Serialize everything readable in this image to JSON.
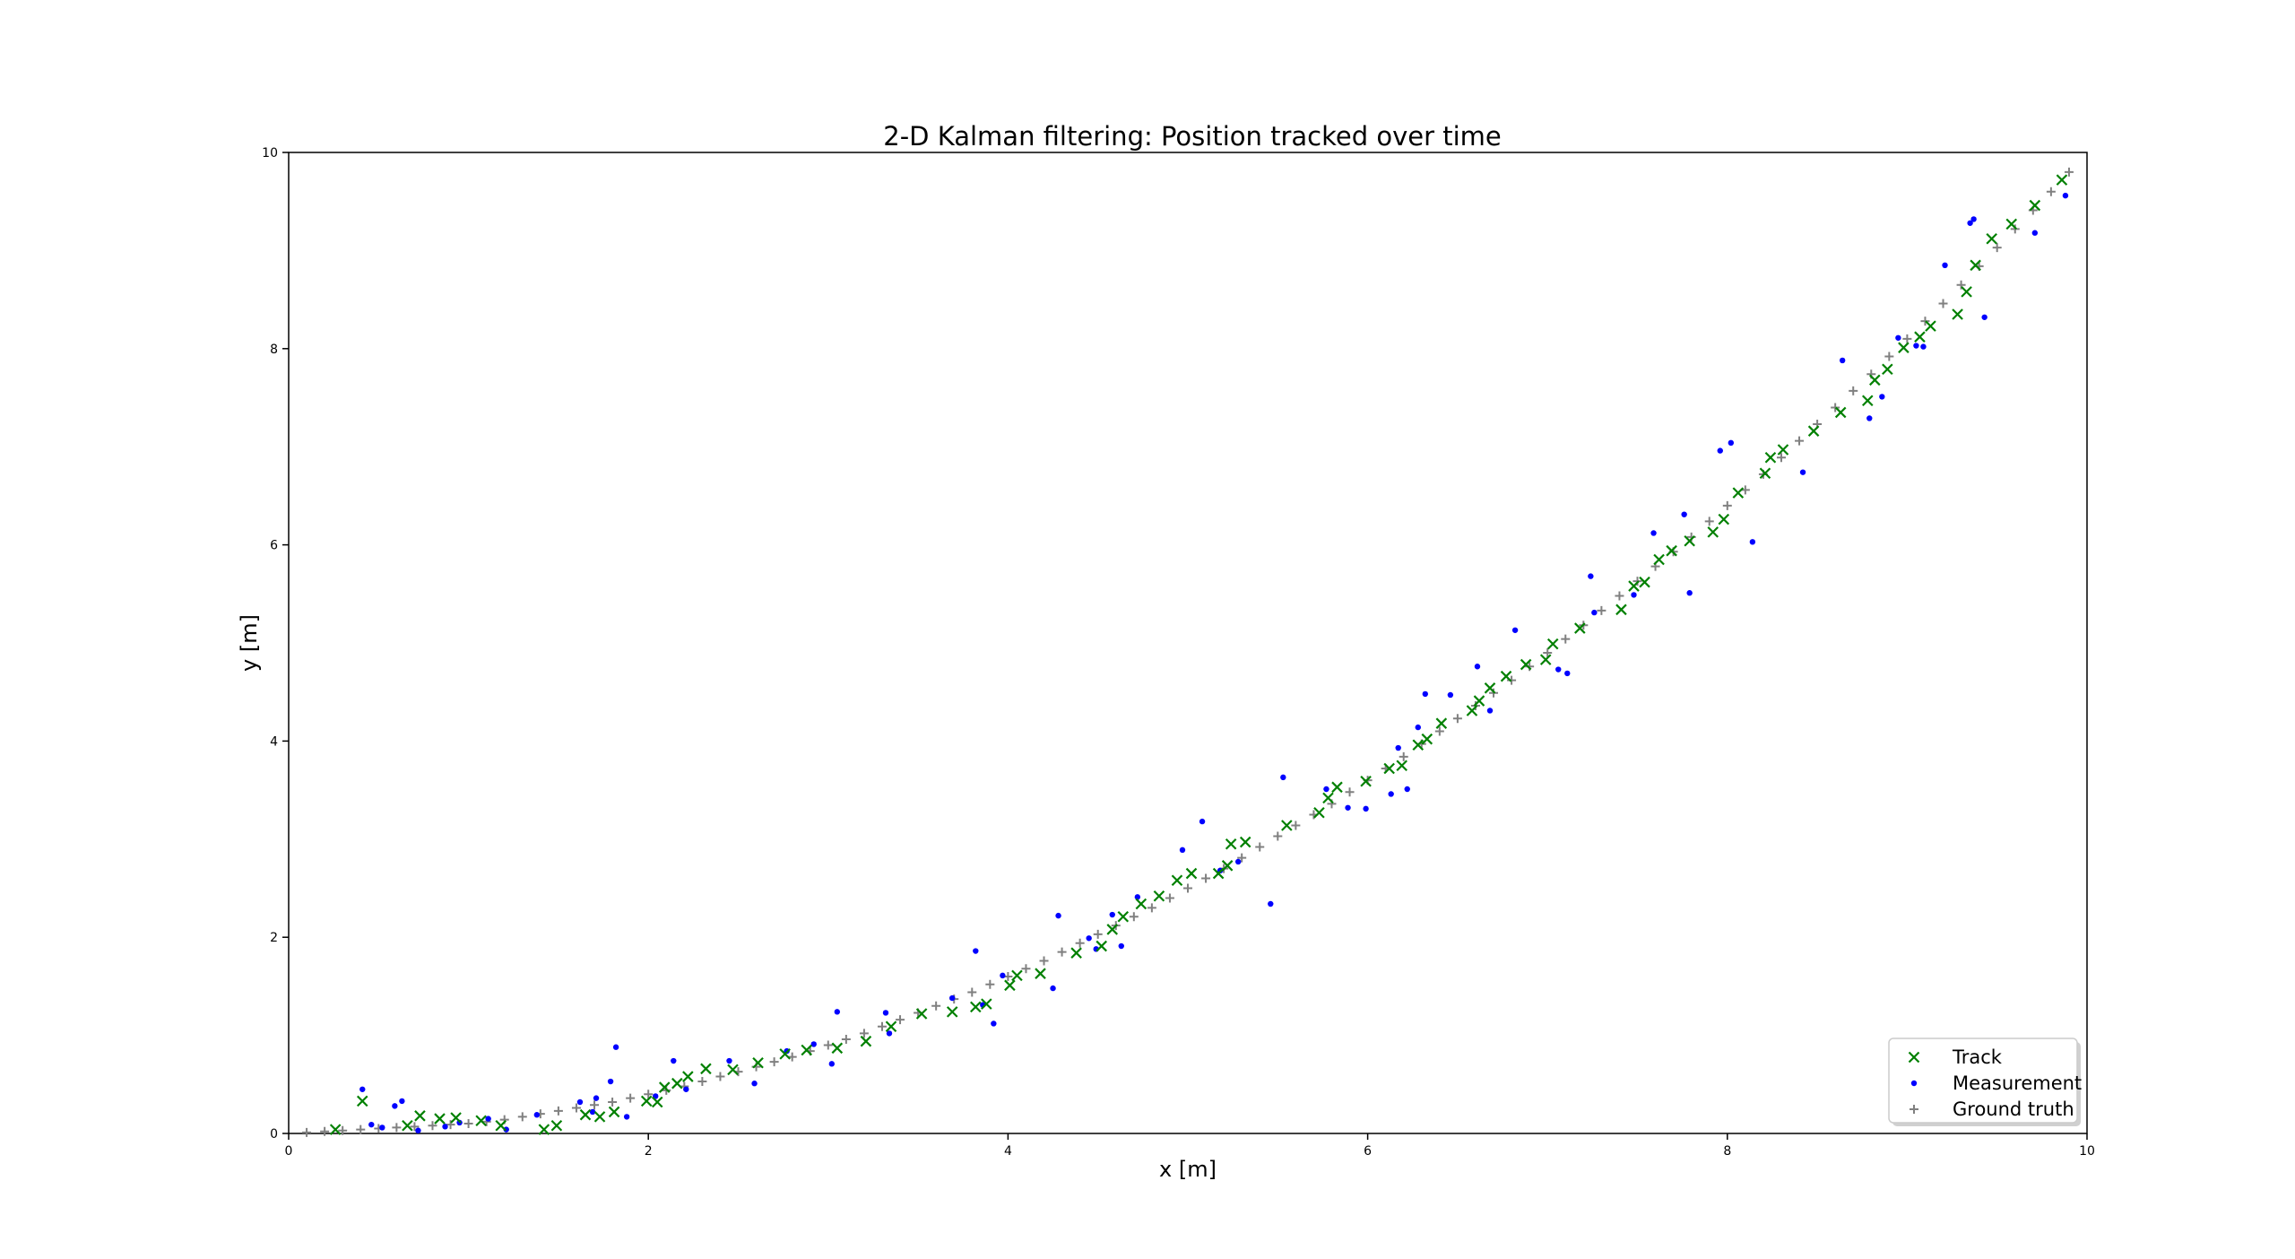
{
  "chart_data": {
    "type": "scatter",
    "title": "2-D Kalman filtering: Position tracked over time",
    "xlabel": "x [m]",
    "ylabel": "y [m]",
    "xlim": [
      0,
      10
    ],
    "ylim": [
      0,
      10
    ],
    "xticks": [
      0,
      2,
      4,
      6,
      8,
      10
    ],
    "yticks": [
      0,
      2,
      4,
      6,
      8,
      10
    ],
    "grid": false,
    "legend_position": "bottom-right",
    "series": [
      {
        "name": "Track",
        "marker": "x",
        "color": "#008000",
        "points": [
          [
            0.26,
            0.04
          ],
          [
            0.41,
            0.33
          ],
          [
            0.66,
            0.08
          ],
          [
            0.73,
            0.18
          ],
          [
            0.84,
            0.15
          ],
          [
            0.93,
            0.16
          ],
          [
            1.07,
            0.13
          ],
          [
            1.18,
            0.08
          ],
          [
            1.42,
            0.04
          ],
          [
            1.49,
            0.08
          ],
          [
            1.65,
            0.19
          ],
          [
            1.73,
            0.17
          ],
          [
            1.81,
            0.22
          ],
          [
            1.99,
            0.33
          ],
          [
            2.05,
            0.32
          ],
          [
            2.09,
            0.47
          ],
          [
            2.16,
            0.51
          ],
          [
            2.22,
            0.58
          ],
          [
            2.32,
            0.66
          ],
          [
            2.47,
            0.65
          ],
          [
            2.61,
            0.72
          ],
          [
            2.76,
            0.81
          ],
          [
            2.88,
            0.85
          ],
          [
            3.05,
            0.87
          ],
          [
            3.21,
            0.94
          ],
          [
            3.35,
            1.09
          ],
          [
            3.52,
            1.22
          ],
          [
            3.69,
            1.24
          ],
          [
            3.82,
            1.29
          ],
          [
            3.88,
            1.32
          ],
          [
            4.01,
            1.51
          ],
          [
            4.05,
            1.61
          ],
          [
            4.18,
            1.63
          ],
          [
            4.38,
            1.84
          ],
          [
            4.52,
            1.91
          ],
          [
            4.58,
            2.08
          ],
          [
            4.64,
            2.21
          ],
          [
            4.74,
            2.34
          ],
          [
            4.84,
            2.42
          ],
          [
            4.94,
            2.58
          ],
          [
            5.02,
            2.65
          ],
          [
            5.17,
            2.65
          ],
          [
            5.22,
            2.73
          ],
          [
            5.24,
            2.95
          ],
          [
            5.32,
            2.97
          ],
          [
            5.55,
            3.14
          ],
          [
            5.73,
            3.27
          ],
          [
            5.78,
            3.42
          ],
          [
            5.83,
            3.53
          ],
          [
            5.99,
            3.59
          ],
          [
            6.12,
            3.72
          ],
          [
            6.19,
            3.75
          ],
          [
            6.28,
            3.96
          ],
          [
            6.33,
            4.02
          ],
          [
            6.41,
            4.18
          ],
          [
            6.58,
            4.31
          ],
          [
            6.62,
            4.41
          ],
          [
            6.68,
            4.54
          ],
          [
            6.77,
            4.66
          ],
          [
            6.88,
            4.78
          ],
          [
            6.99,
            4.83
          ],
          [
            7.03,
            4.99
          ],
          [
            7.18,
            5.15
          ],
          [
            7.41,
            5.34
          ],
          [
            7.48,
            5.58
          ],
          [
            7.54,
            5.62
          ],
          [
            7.62,
            5.85
          ],
          [
            7.69,
            5.94
          ],
          [
            7.79,
            6.04
          ],
          [
            7.92,
            6.13
          ],
          [
            7.98,
            6.26
          ],
          [
            8.06,
            6.53
          ],
          [
            8.21,
            6.73
          ],
          [
            8.24,
            6.89
          ],
          [
            8.31,
            6.97
          ],
          [
            8.48,
            7.16
          ],
          [
            8.63,
            7.35
          ],
          [
            8.78,
            7.47
          ],
          [
            8.82,
            7.68
          ],
          [
            8.89,
            7.79
          ],
          [
            8.98,
            8.01
          ],
          [
            9.07,
            8.12
          ],
          [
            9.13,
            8.23
          ],
          [
            9.28,
            8.35
          ],
          [
            9.33,
            8.58
          ],
          [
            9.38,
            8.85
          ],
          [
            9.47,
            9.12
          ],
          [
            9.58,
            9.27
          ],
          [
            9.71,
            9.46
          ],
          [
            9.86,
            9.72
          ]
        ]
      },
      {
        "name": "Measurement",
        "marker": "dot",
        "color": "#0000ff",
        "points": [
          [
            0.41,
            0.45
          ],
          [
            0.46,
            0.09
          ],
          [
            0.52,
            0.06
          ],
          [
            0.59,
            0.28
          ],
          [
            0.63,
            0.33
          ],
          [
            0.72,
            0.03
          ],
          [
            0.87,
            0.07
          ],
          [
            0.95,
            0.11
          ],
          [
            1.11,
            0.15
          ],
          [
            1.21,
            0.04
          ],
          [
            1.38,
            0.19
          ],
          [
            1.62,
            0.32
          ],
          [
            1.69,
            0.22
          ],
          [
            1.71,
            0.36
          ],
          [
            1.79,
            0.53
          ],
          [
            1.82,
            0.88
          ],
          [
            1.88,
            0.17
          ],
          [
            2.04,
            0.38
          ],
          [
            2.14,
            0.74
          ],
          [
            2.21,
            0.45
          ],
          [
            2.45,
            0.74
          ],
          [
            2.59,
            0.51
          ],
          [
            2.77,
            0.84
          ],
          [
            2.92,
            0.91
          ],
          [
            3.02,
            0.71
          ],
          [
            3.05,
            1.24
          ],
          [
            3.32,
            1.23
          ],
          [
            3.34,
            1.02
          ],
          [
            3.69,
            1.38
          ],
          [
            3.82,
            1.86
          ],
          [
            3.86,
            1.31
          ],
          [
            3.92,
            1.12
          ],
          [
            3.97,
            1.61
          ],
          [
            4.25,
            1.48
          ],
          [
            4.28,
            2.22
          ],
          [
            4.45,
            1.99
          ],
          [
            4.49,
            1.88
          ],
          [
            4.58,
            2.23
          ],
          [
            4.63,
            1.91
          ],
          [
            4.72,
            2.41
          ],
          [
            4.97,
            2.89
          ],
          [
            5.08,
            3.18
          ],
          [
            5.18,
            2.68
          ],
          [
            5.28,
            2.77
          ],
          [
            5.46,
            2.34
          ],
          [
            5.53,
            3.63
          ],
          [
            5.77,
            3.51
          ],
          [
            5.89,
            3.32
          ],
          [
            5.99,
            3.31
          ],
          [
            6.13,
            3.46
          ],
          [
            6.17,
            3.93
          ],
          [
            6.22,
            3.51
          ],
          [
            6.28,
            4.14
          ],
          [
            6.32,
            4.48
          ],
          [
            6.46,
            4.47
          ],
          [
            6.61,
            4.76
          ],
          [
            6.68,
            4.31
          ],
          [
            6.82,
            5.13
          ],
          [
            7.06,
            4.73
          ],
          [
            7.11,
            4.69
          ],
          [
            7.24,
            5.68
          ],
          [
            7.26,
            5.31
          ],
          [
            7.48,
            5.49
          ],
          [
            7.59,
            6.12
          ],
          [
            7.76,
            6.31
          ],
          [
            7.79,
            5.51
          ],
          [
            7.96,
            6.96
          ],
          [
            8.02,
            7.04
          ],
          [
            8.14,
            6.03
          ],
          [
            8.42,
            6.74
          ],
          [
            8.64,
            7.88
          ],
          [
            8.79,
            7.29
          ],
          [
            8.86,
            7.51
          ],
          [
            8.95,
            8.11
          ],
          [
            9.05,
            8.03
          ],
          [
            9.09,
            8.02
          ],
          [
            9.21,
            8.85
          ],
          [
            9.35,
            9.28
          ],
          [
            9.37,
            9.32
          ],
          [
            9.43,
            8.32
          ],
          [
            9.71,
            9.18
          ],
          [
            9.88,
            9.56
          ]
        ]
      },
      {
        "name": "Ground truth",
        "marker": "+",
        "color": "#808080",
        "points": [
          [
            0.1,
            0.01
          ],
          [
            0.2,
            0.02
          ],
          [
            0.3,
            0.03
          ],
          [
            0.4,
            0.04
          ],
          [
            0.5,
            0.05
          ],
          [
            0.6,
            0.06
          ],
          [
            0.7,
            0.07
          ],
          [
            0.8,
            0.08
          ],
          [
            0.9,
            0.09
          ],
          [
            1.0,
            0.1
          ],
          [
            1.1,
            0.12
          ],
          [
            1.2,
            0.14
          ],
          [
            1.3,
            0.17
          ],
          [
            1.4,
            0.2
          ],
          [
            1.5,
            0.23
          ],
          [
            1.6,
            0.26
          ],
          [
            1.7,
            0.29
          ],
          [
            1.8,
            0.32
          ],
          [
            1.9,
            0.36
          ],
          [
            2.0,
            0.4
          ],
          [
            2.1,
            0.44
          ],
          [
            2.2,
            0.48
          ],
          [
            2.3,
            0.53
          ],
          [
            2.4,
            0.58
          ],
          [
            2.5,
            0.63
          ],
          [
            2.6,
            0.68
          ],
          [
            2.7,
            0.73
          ],
          [
            2.8,
            0.78
          ],
          [
            2.9,
            0.84
          ],
          [
            3.0,
            0.9
          ],
          [
            3.1,
            0.96
          ],
          [
            3.2,
            1.02
          ],
          [
            3.3,
            1.09
          ],
          [
            3.4,
            1.16
          ],
          [
            3.5,
            1.23
          ],
          [
            3.6,
            1.3
          ],
          [
            3.7,
            1.37
          ],
          [
            3.8,
            1.44
          ],
          [
            3.9,
            1.52
          ],
          [
            4.0,
            1.6
          ],
          [
            4.1,
            1.68
          ],
          [
            4.2,
            1.76
          ],
          [
            4.3,
            1.85
          ],
          [
            4.4,
            1.94
          ],
          [
            4.5,
            2.03
          ],
          [
            4.6,
            2.12
          ],
          [
            4.7,
            2.21
          ],
          [
            4.8,
            2.3
          ],
          [
            4.9,
            2.4
          ],
          [
            5.0,
            2.5
          ],
          [
            5.1,
            2.6
          ],
          [
            5.2,
            2.7
          ],
          [
            5.3,
            2.81
          ],
          [
            5.4,
            2.92
          ],
          [
            5.5,
            3.03
          ],
          [
            5.6,
            3.14
          ],
          [
            5.7,
            3.25
          ],
          [
            5.8,
            3.36
          ],
          [
            5.9,
            3.48
          ],
          [
            6.0,
            3.6
          ],
          [
            6.1,
            3.72
          ],
          [
            6.2,
            3.84
          ],
          [
            6.3,
            3.97
          ],
          [
            6.4,
            4.1
          ],
          [
            6.5,
            4.23
          ],
          [
            6.6,
            4.36
          ],
          [
            6.7,
            4.49
          ],
          [
            6.8,
            4.62
          ],
          [
            6.9,
            4.76
          ],
          [
            7.0,
            4.9
          ],
          [
            7.1,
            5.04
          ],
          [
            7.2,
            5.18
          ],
          [
            7.3,
            5.33
          ],
          [
            7.4,
            5.48
          ],
          [
            7.5,
            5.63
          ],
          [
            7.6,
            5.78
          ],
          [
            7.7,
            5.93
          ],
          [
            7.8,
            6.08
          ],
          [
            7.9,
            6.24
          ],
          [
            8.0,
            6.4
          ],
          [
            8.1,
            6.56
          ],
          [
            8.2,
            6.72
          ],
          [
            8.3,
            6.89
          ],
          [
            8.4,
            7.06
          ],
          [
            8.5,
            7.23
          ],
          [
            8.6,
            7.4
          ],
          [
            8.7,
            7.57
          ],
          [
            8.8,
            7.74
          ],
          [
            8.9,
            7.92
          ],
          [
            9.0,
            8.1
          ],
          [
            9.1,
            8.28
          ],
          [
            9.2,
            8.46
          ],
          [
            9.3,
            8.65
          ],
          [
            9.4,
            8.84
          ],
          [
            9.5,
            9.03
          ],
          [
            9.6,
            9.22
          ],
          [
            9.7,
            9.41
          ],
          [
            9.8,
            9.6
          ],
          [
            9.9,
            9.8
          ]
        ]
      }
    ]
  }
}
